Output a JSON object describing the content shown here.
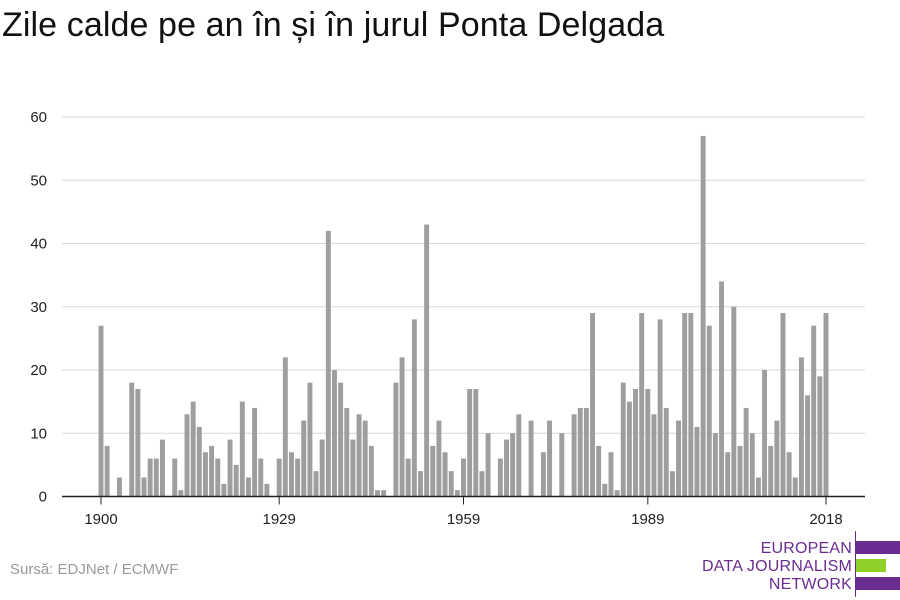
{
  "title": "Zile calde pe an în și în jurul Ponta Delgada",
  "source": "Sursă: EDJNet / ECMWF",
  "logo": {
    "lines": [
      "EUROPEAN",
      "DATA JOURNALISM",
      "NETWORK"
    ],
    "colors": {
      "purple": "#6b2c91",
      "green": "#8fd12a"
    }
  },
  "colors": {
    "bar": "#9e9e9e",
    "grid": "#d9d9d9",
    "axis": "#222222",
    "tick_text": "#222222"
  },
  "chart_data": {
    "type": "bar",
    "title": "Zile calde pe an în și în jurul Ponta Delgada",
    "xlabel": "",
    "ylabel": "",
    "ylim": [
      0,
      60
    ],
    "yticks": [
      0,
      10,
      20,
      30,
      40,
      50,
      60
    ],
    "xticks": [
      1900,
      1929,
      1959,
      1989,
      2018
    ],
    "grid": true,
    "x": [
      1900,
      1901,
      1902,
      1903,
      1904,
      1905,
      1906,
      1907,
      1908,
      1909,
      1910,
      1911,
      1912,
      1913,
      1914,
      1915,
      1916,
      1917,
      1918,
      1919,
      1920,
      1921,
      1922,
      1923,
      1924,
      1925,
      1926,
      1927,
      1928,
      1929,
      1930,
      1931,
      1932,
      1933,
      1934,
      1935,
      1936,
      1937,
      1938,
      1939,
      1940,
      1941,
      1942,
      1943,
      1944,
      1945,
      1946,
      1947,
      1948,
      1949,
      1950,
      1951,
      1952,
      1953,
      1954,
      1955,
      1956,
      1957,
      1958,
      1959,
      1960,
      1961,
      1962,
      1963,
      1964,
      1965,
      1966,
      1967,
      1968,
      1969,
      1970,
      1971,
      1972,
      1973,
      1974,
      1975,
      1976,
      1977,
      1978,
      1979,
      1980,
      1981,
      1982,
      1983,
      1984,
      1985,
      1986,
      1987,
      1988,
      1989,
      1990,
      1991,
      1992,
      1993,
      1994,
      1995,
      1996,
      1997,
      1998,
      1999,
      2000,
      2001,
      2002,
      2003,
      2004,
      2005,
      2006,
      2007,
      2008,
      2009,
      2010,
      2011,
      2012,
      2013,
      2014,
      2015,
      2016,
      2017,
      2018
    ],
    "values": [
      27,
      8,
      0,
      3,
      0,
      18,
      17,
      3,
      6,
      6,
      9,
      0,
      6,
      1,
      13,
      15,
      11,
      7,
      8,
      6,
      2,
      9,
      5,
      15,
      3,
      14,
      6,
      2,
      0,
      6,
      22,
      7,
      6,
      12,
      18,
      4,
      9,
      42,
      20,
      18,
      14,
      9,
      13,
      12,
      8,
      1,
      1,
      0,
      18,
      22,
      6,
      28,
      4,
      43,
      8,
      12,
      7,
      4,
      1,
      6,
      17,
      17,
      4,
      10,
      0,
      6,
      9,
      10,
      13,
      0,
      12,
      0,
      7,
      12,
      0,
      10,
      0,
      13,
      14,
      14,
      29,
      8,
      2,
      7,
      1,
      18,
      15,
      17,
      29,
      17,
      13,
      28,
      14,
      4,
      12,
      29,
      29,
      11,
      57,
      27,
      10,
      34,
      7,
      30,
      8,
      14,
      10,
      3,
      20,
      8,
      12,
      29,
      7,
      3,
      22,
      16,
      27,
      19,
      29
    ]
  }
}
